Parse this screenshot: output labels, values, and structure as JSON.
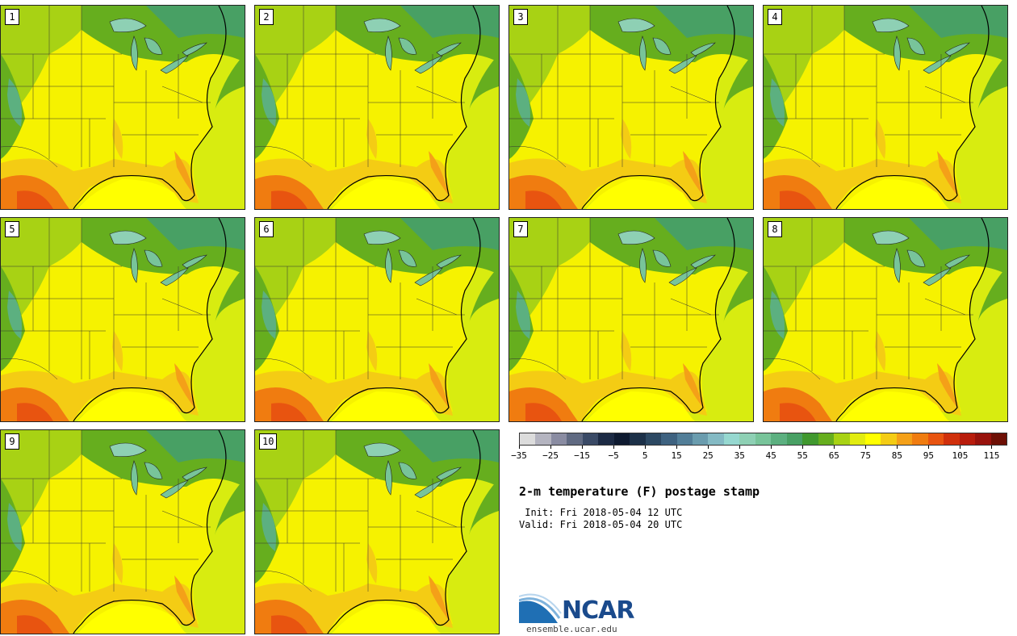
{
  "panels": [
    {
      "label": "1"
    },
    {
      "label": "2"
    },
    {
      "label": "3"
    },
    {
      "label": "4"
    },
    {
      "label": "5"
    },
    {
      "label": "6"
    },
    {
      "label": "7"
    },
    {
      "label": "8"
    },
    {
      "label": "9"
    },
    {
      "label": "10"
    }
  ],
  "colorbar": {
    "colors": [
      "#dcdcdc",
      "#b4b4c0",
      "#8a8ca2",
      "#606a82",
      "#3a4a66",
      "#1c2a44",
      "#0e1a30",
      "#1c3048",
      "#2c4862",
      "#3e6280",
      "#527e98",
      "#6a9cae",
      "#84bac4",
      "#96d8d0",
      "#8ed0b4",
      "#78c49a",
      "#5cb080",
      "#48a064",
      "#40982e",
      "#66ae1e",
      "#a8d214",
      "#e2ec10",
      "#ffff00",
      "#f4cc14",
      "#f4a018",
      "#f07c10",
      "#e85410",
      "#d0300c",
      "#b81c0c",
      "#98120c",
      "#6e1006"
    ],
    "tick_labels": [
      "−35",
      "−25",
      "−15",
      "−5",
      "5",
      "15",
      "25",
      "35",
      "45",
      "55",
      "65",
      "75",
      "85",
      "95",
      "105",
      "115"
    ]
  },
  "title": "2-m temperature (F) postage stamp",
  "init_line": " Init: Fri 2018-05-04 12 UTC",
  "valid_line": "Valid: Fri 2018-05-04 20 UTC",
  "logo": {
    "name": "NCAR",
    "url": "ensemble.ucar.edu"
  }
}
